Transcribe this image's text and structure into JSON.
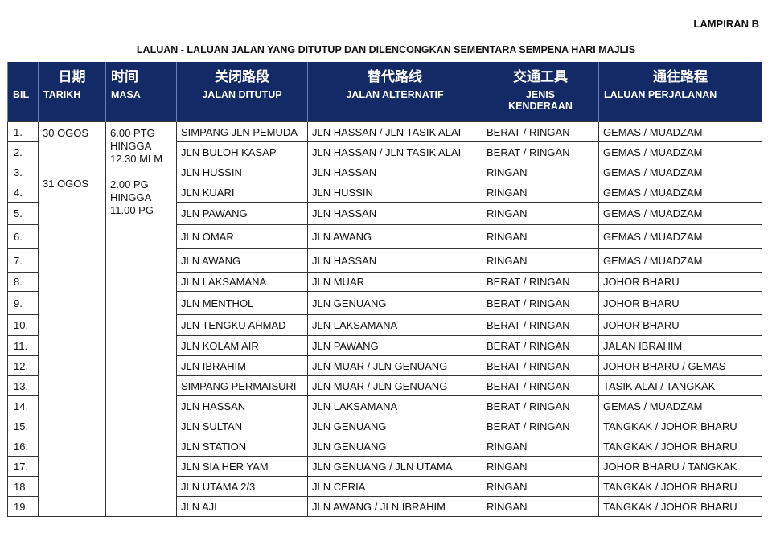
{
  "lampiran": "LAMPIRAN B",
  "title": "LALUAN - LALUAN JALAN YANG DITUTUP DAN DILENCONGKAN SEMENTARA SEMPENA HARI MAJLIS",
  "headers_zh": [
    "",
    "日期",
    "时间",
    "关闭路段",
    "替代路线",
    "交通工具",
    "通往路程"
  ],
  "headers": [
    "BIL",
    "TARIKH",
    "MASA",
    "JALAN DITUTUP",
    "JALAN ALTERNATIF",
    "JENIS KENDERAAN",
    "LALUAN PERJALANAN"
  ],
  "tarikh": [
    "30 OGOS",
    "31 OGOS"
  ],
  "masa": [
    "6.00 PTG",
    "HINGGA",
    "12.30 MLM",
    "2.00 PG",
    "HINGGA",
    "11.00 PG"
  ],
  "rows": [
    {
      "bil": "1.",
      "ditutup": "SIMPANG JLN PEMUDA",
      "alternatif": "JLN HASSAN / JLN TASIK ALAI",
      "kenderaan": "BERAT / RINGAN",
      "laluan": "GEMAS / MUADZAM"
    },
    {
      "bil": "2.",
      "ditutup": "JLN BULOH KASAP",
      "alternatif": "JLN HASSAN / JLN TASIK ALAI",
      "kenderaan": "BERAT / RINGAN",
      "laluan": "GEMAS / MUADZAM"
    },
    {
      "bil": "3.",
      "ditutup": "JLN HUSSIN",
      "alternatif": "JLN HASSAN",
      "kenderaan": "RINGAN",
      "laluan": "GEMAS / MUADZAM"
    },
    {
      "bil": "4.",
      "ditutup": "JLN KUARI",
      "alternatif": "JLN HUSSIN",
      "kenderaan": "RINGAN",
      "laluan": "GEMAS / MUADZAM"
    },
    {
      "bil": "5.",
      "ditutup": "JLN PAWANG",
      "alternatif": "JLN HASSAN",
      "kenderaan": "RINGAN",
      "laluan": "GEMAS / MUADZAM"
    },
    {
      "bil": "6.",
      "ditutup": "JLN OMAR",
      "alternatif": "JLN AWANG",
      "kenderaan": "RINGAN",
      "laluan": "GEMAS / MUADZAM"
    },
    {
      "bil": "7.",
      "ditutup": "JLN AWANG",
      "alternatif": "JLN HASSAN",
      "kenderaan": "RINGAN",
      "laluan": "GEMAS / MUADZAM"
    },
    {
      "bil": "8.",
      "ditutup": "JLN LAKSAMANA",
      "alternatif": "JLN MUAR",
      "kenderaan": "BERAT / RINGAN",
      "laluan": "JOHOR BHARU"
    },
    {
      "bil": "9.",
      "ditutup": "JLN MENTHOL",
      "alternatif": "JLN GENUANG",
      "kenderaan": "BERAT / RINGAN",
      "laluan": "JOHOR BHARU"
    },
    {
      "bil": "10.",
      "ditutup": "JLN TENGKU AHMAD",
      "alternatif": "JLN LAKSAMANA",
      "kenderaan": "BERAT / RINGAN",
      "laluan": "JOHOR BHARU"
    },
    {
      "bil": "11.",
      "ditutup": "JLN KOLAM AIR",
      "alternatif": "JLN PAWANG",
      "kenderaan": "BERAT / RINGAN",
      "laluan": "JALAN IBRAHIM"
    },
    {
      "bil": "12.",
      "ditutup": "JLN IBRAHIM",
      "alternatif": "JLN MUAR / JLN GENUANG",
      "kenderaan": "BERAT / RINGAN",
      "laluan": "JOHOR BHARU / GEMAS"
    },
    {
      "bil": "13.",
      "ditutup": "SIMPANG PERMAISURI",
      "alternatif": "JLN MUAR / JLN GENUANG",
      "kenderaan": "BERAT / RINGAN",
      "laluan": "TASIK ALAI / TANGKAK"
    },
    {
      "bil": "14.",
      "ditutup": "JLN HASSAN",
      "alternatif": "JLN LAKSAMANA",
      "kenderaan": "BERAT / RINGAN",
      "laluan": "GEMAS / MUADZAM"
    },
    {
      "bil": "15.",
      "ditutup": "JLN SULTAN",
      "alternatif": "JLN GENUANG",
      "kenderaan": "BERAT / RINGAN",
      "laluan": "TANGKAK / JOHOR BHARU"
    },
    {
      "bil": "16.",
      "ditutup": "JLN STATION",
      "alternatif": "JLN GENUANG",
      "kenderaan": "RINGAN",
      "laluan": "TANGKAK / JOHOR BHARU"
    },
    {
      "bil": "17.",
      "ditutup": "JLN SIA HER YAM",
      "alternatif": "JLN GENUANG / JLN UTAMA",
      "kenderaan": "RINGAN",
      "laluan": "JOHOR BHARU / TANGKAK"
    },
    {
      "bil": "18",
      "ditutup": "JLN UTAMA 2/3",
      "alternatif": "JLN CERIA",
      "kenderaan": "RINGAN",
      "laluan": "TANGKAK / JOHOR BHARU"
    },
    {
      "bil": "19.",
      "ditutup": "JLN AJI",
      "alternatif": "JLN AWANG / JLN IBRAHIM",
      "kenderaan": "RINGAN",
      "laluan": "TANGKAK / JOHOR BHARU"
    }
  ]
}
